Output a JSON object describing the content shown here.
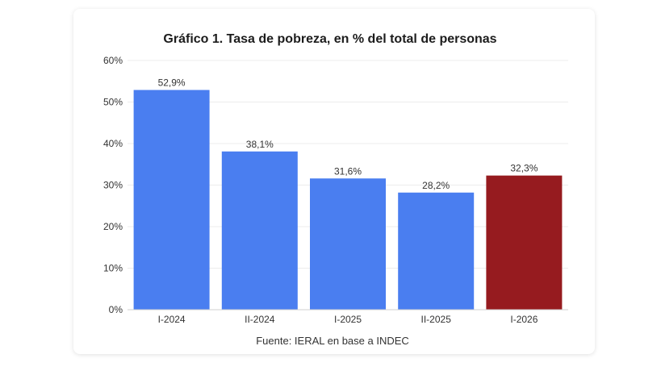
{
  "chart_data": {
    "type": "bar",
    "title": "Gráfico 1. Tasa de pobreza, en % del total de personas",
    "categories": [
      "I-2024",
      "II-2024",
      "I-2025",
      "II-2025",
      "I-2026"
    ],
    "values": [
      52.9,
      38.1,
      31.6,
      28.2,
      32.3
    ],
    "value_labels": [
      "52,9%",
      "38,1%",
      "31,6%",
      "28,2%",
      "32,3%"
    ],
    "bar_colors": [
      "#4a7ef0",
      "#4a7ef0",
      "#4a7ef0",
      "#4a7ef0",
      "#961b1f"
    ],
    "y_ticks": [
      0,
      10,
      20,
      30,
      40,
      50,
      60
    ],
    "y_tick_labels": [
      "0%",
      "10%",
      "20%",
      "30%",
      "40%",
      "50%",
      "60%"
    ],
    "ylim": [
      0,
      60
    ],
    "xlabel": "",
    "ylabel": "",
    "grid": true,
    "source": "Fuente: IERAL en base a INDEC"
  }
}
